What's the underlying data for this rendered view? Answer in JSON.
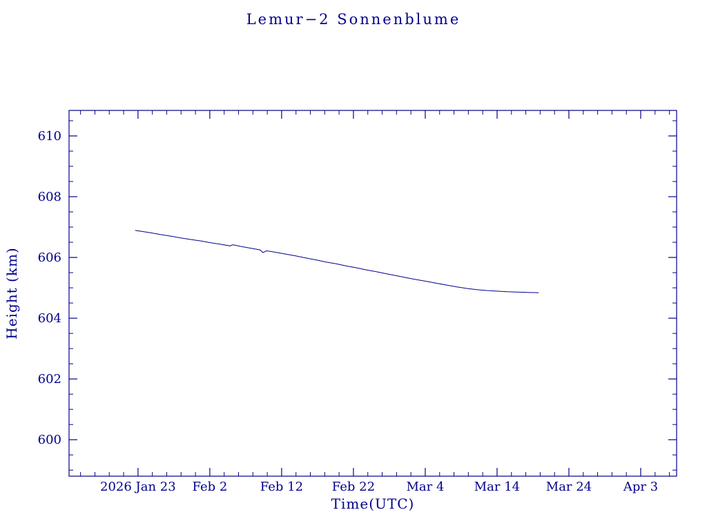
{
  "page": {
    "background": "#ffffff",
    "accent": "#00008b"
  },
  "chart_data": {
    "type": "line",
    "title": "Lemur−2 Sonnenblume",
    "xlabel": "Time(UTC)",
    "ylabel": "Height (km)",
    "color": "#00008b",
    "grid": false,
    "legend": "none",
    "x_axis": {
      "unit": "days since 2026 Jan 23",
      "xlim": [
        -9.6,
        75.0
      ],
      "minor_step": 2,
      "major_ticks": [
        {
          "day": 0,
          "label": "2026 Jan 23"
        },
        {
          "day": 10,
          "label": "Feb  2"
        },
        {
          "day": 20,
          "label": "Feb 12"
        },
        {
          "day": 30,
          "label": "Feb 22"
        },
        {
          "day": 40,
          "label": "Mar  4"
        },
        {
          "day": 50,
          "label": "Mar 14"
        },
        {
          "day": 60,
          "label": "Mar 24"
        },
        {
          "day": 70,
          "label": "Apr  3"
        }
      ]
    },
    "y_axis": {
      "ylim": [
        598.8,
        610.84
      ],
      "minor_step": 0.5,
      "major_ticks": [
        600,
        602,
        604,
        606,
        608,
        610
      ]
    },
    "series": [
      {
        "name": "Lemur-2 Sonnenblume height (km)",
        "points": [
          [
            -0.4,
            606.89
          ],
          [
            0.5,
            606.86
          ],
          [
            1.8,
            606.81
          ],
          [
            3.2,
            606.75
          ],
          [
            4.6,
            606.7
          ],
          [
            6.0,
            606.64
          ],
          [
            7.4,
            606.59
          ],
          [
            8.8,
            606.54
          ],
          [
            10.2,
            606.48
          ],
          [
            11.6,
            606.43
          ],
          [
            12.8,
            606.38
          ],
          [
            13.2,
            606.42
          ],
          [
            14.4,
            606.36
          ],
          [
            15.8,
            606.3
          ],
          [
            17.0,
            606.25
          ],
          [
            17.4,
            606.16
          ],
          [
            17.9,
            606.22
          ],
          [
            19.2,
            606.17
          ],
          [
            20.6,
            606.11
          ],
          [
            22.0,
            606.05
          ],
          [
            23.4,
            605.98
          ],
          [
            24.8,
            605.92
          ],
          [
            26.2,
            605.85
          ],
          [
            27.6,
            605.79
          ],
          [
            29.0,
            605.72
          ],
          [
            30.4,
            605.66
          ],
          [
            31.8,
            605.59
          ],
          [
            33.2,
            605.53
          ],
          [
            34.6,
            605.46
          ],
          [
            36.0,
            605.4
          ],
          [
            37.4,
            605.33
          ],
          [
            38.8,
            605.27
          ],
          [
            40.2,
            605.21
          ],
          [
            41.6,
            605.15
          ],
          [
            43.0,
            605.09
          ],
          [
            44.4,
            605.03
          ],
          [
            45.8,
            604.98
          ],
          [
            47.2,
            604.94
          ],
          [
            48.6,
            604.91
          ],
          [
            50.0,
            604.89
          ],
          [
            51.4,
            604.87
          ],
          [
            52.8,
            604.86
          ],
          [
            54.2,
            604.85
          ],
          [
            55.8,
            604.84
          ]
        ]
      }
    ]
  }
}
